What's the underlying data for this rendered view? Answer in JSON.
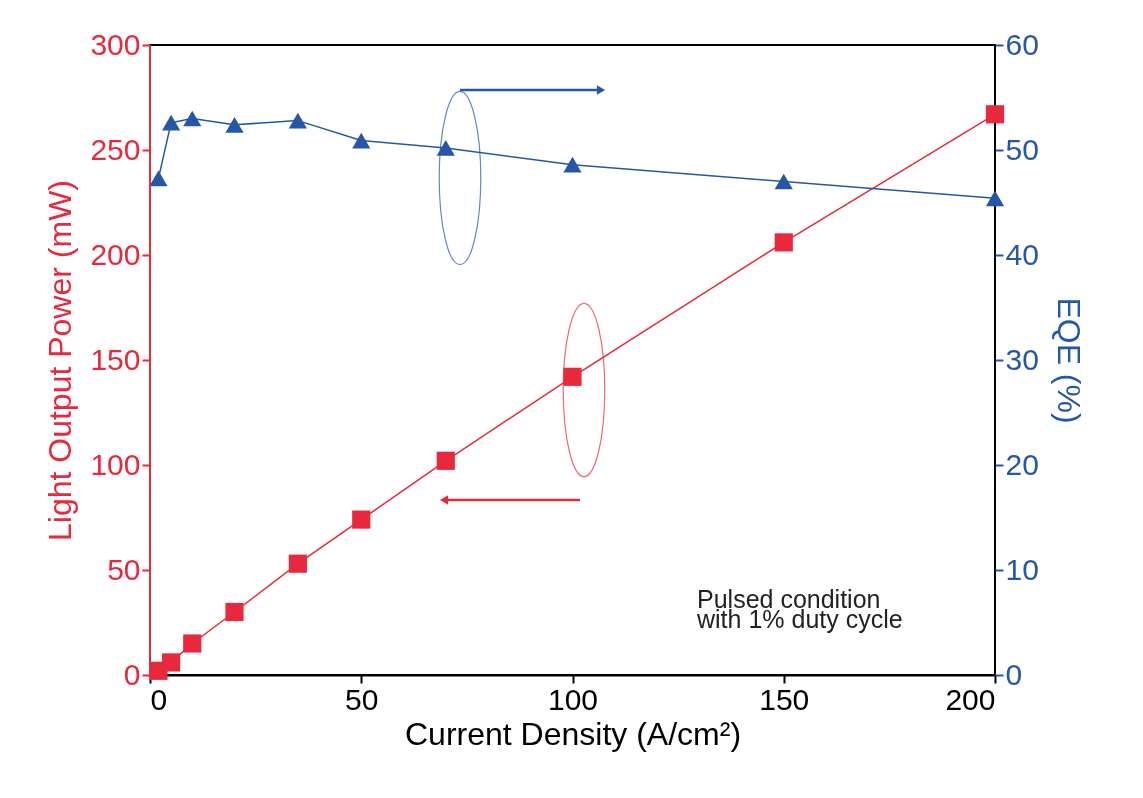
{
  "chart_data": {
    "type": "line",
    "xlabel": "Current Density (A/cm²)",
    "ylabel": "Light Output Power (mW)",
    "y2label": "EQE (%)",
    "xlim": [
      0,
      200
    ],
    "xticks": [
      0,
      50,
      100,
      150,
      200
    ],
    "ylim": [
      0,
      300
    ],
    "yticks": [
      0,
      50,
      100,
      150,
      200,
      250,
      300
    ],
    "y2lim": [
      0,
      60
    ],
    "y2ticks": [
      0,
      10,
      20,
      30,
      40,
      50,
      60
    ],
    "grid": false,
    "annotations": [
      "Pulsed condition",
      "with 1% duty cycle"
    ],
    "series": [
      {
        "color": "#e8283c",
        "marker": "square",
        "x": [
          2,
          5,
          10,
          20,
          35,
          50,
          70,
          100,
          150,
          200
        ],
        "values": [
          2,
          6,
          15,
          30,
          53,
          74,
          102,
          142,
          206,
          267
        ]
      },
      {
        "color": "#2656a8",
        "marker": "triangle",
        "axis": "y2",
        "x": [
          2,
          5,
          10,
          20,
          35,
          50,
          70,
          100,
          150,
          200
        ],
        "values": [
          47.3,
          52.6,
          53,
          52.4,
          52.8,
          50.9,
          50.2,
          48.6,
          47,
          45.4
        ]
      }
    ]
  }
}
